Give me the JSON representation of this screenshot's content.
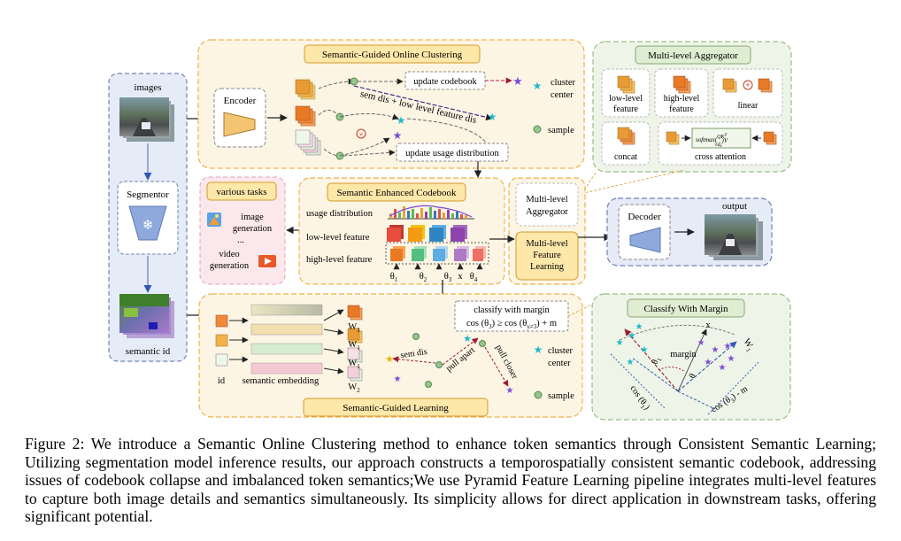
{
  "images_label": "images",
  "segmentor_label": "Segmentor",
  "semantic_id_label": "semantic id",
  "encoder_label": "Encoder",
  "decoder_label": "Decoder",
  "output_label": "output",
  "sgoc": {
    "title": "Semantic-Guided Online Clustering",
    "update_codebook": "update codebook",
    "update_usage": "update usage distribution",
    "sem_dis_low": "sem dis + low level feature dis",
    "cluster_center": [
      "cluster",
      "center"
    ],
    "sample": "sample"
  },
  "aggregator": {
    "title": "Multi-level Aggregator",
    "low": [
      "low-level",
      "feature"
    ],
    "high": [
      "high-level",
      "feature"
    ],
    "linear": "linear",
    "concat": "concat",
    "cross": "cross attention",
    "formula_main": "softmax(",
    "formula_q": "QK",
    "formula_t": "T",
    "formula_den": "√d",
    "formula_k": "k",
    "formula_v": ")V"
  },
  "tasks": {
    "title": "various tasks",
    "image_gen": [
      "image",
      "generation"
    ],
    "dots": "...",
    "video_gen": [
      "video",
      "generation"
    ]
  },
  "codebook": {
    "title": "Semantic Enhanced Codebook",
    "usage": "usage distribution",
    "low": "low-level feature",
    "high": "high-level feature",
    "thetas": [
      {
        "t": "θ",
        "s": "1"
      },
      {
        "t": "θ",
        "s": "2"
      },
      {
        "t": "θ",
        "s": "3"
      },
      {
        "t": "θ",
        "s": "4"
      }
    ],
    "x_mark": "x"
  },
  "mlagg_label": [
    "Multi-level",
    "Aggregator"
  ],
  "mlfl_label": [
    "Multi-level",
    "Feature",
    "Learning"
  ],
  "sgl": {
    "title": "Semantic-Guided Learning",
    "id": "id",
    "embed": "semantic embedding",
    "w_labels": [
      {
        "t": "W",
        "s": "1"
      },
      {
        "t": "W",
        "s": "1"
      },
      {
        "t": "W",
        "s": "1"
      },
      {
        "t": "W",
        "s": "2"
      }
    ],
    "sem_dis": "sem dis",
    "pull_apart": "pull apart",
    "pull_closer": "pull closer",
    "classify": "classify with margin",
    "formula": "cos (θ",
    "formula_s1": "3",
    "formula_mid": ") ≥ cos (θ",
    "formula_s2": "y≠3",
    "formula_end": ") + m",
    "cluster_center": [
      "cluster",
      "center"
    ],
    "sample": "sample"
  },
  "margin": {
    "title": "Classify With Margin",
    "x": "x",
    "w": "W",
    "w_sub": "1",
    "margin": "margin",
    "theta1": "θ",
    "theta1_sub": "1",
    "theta": "θ",
    "cos1": "cos (θ",
    "cos1_sub": "1",
    "cos1_end": ")",
    "cos3": "cos (θ",
    "cos3_sub": "3",
    "cos3_end": ") - m"
  },
  "caption": "Figure 2: We introduce a Semantic Online Clustering method to enhance token semantics through Consistent Semantic Learning; Utilizing segmentation model inference results, our approach constructs a temporospatially consistent semantic codebook, addressing issues of codebook collapse and imbalanced token semantics;We use Pyramid Feature Learning pipeline integrates multi-level features to capture both image details and semantics simultaneously. Its simplicity allows for direct application in downstream tasks, offering significant potential.",
  "colors": {
    "orange_panel_bg": "#fdf5e4",
    "orange_panel_border": "#f0b14a",
    "blue_panel_bg": "#e6ecf7",
    "blue_border": "#6f83b5",
    "green_panel_bg": "#eef5e8",
    "green_border": "#9bbd86",
    "pink_panel_bg": "#fbe8ec",
    "title_fill": "#fde7a9",
    "cluster_star": "#1fb9c9",
    "sample_dot": "#93c58d",
    "purple": "#7b4bd6"
  }
}
